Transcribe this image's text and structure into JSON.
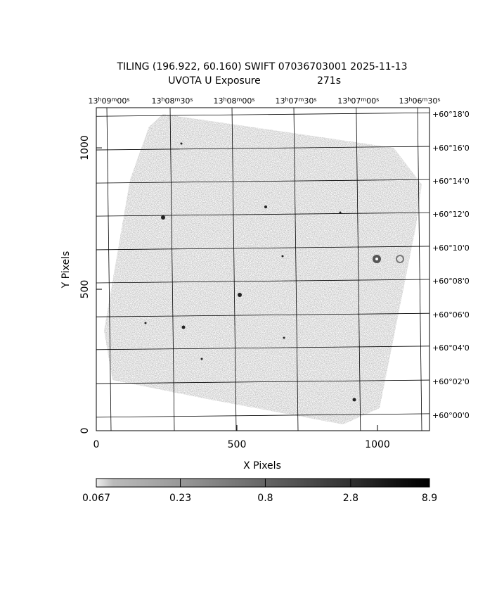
{
  "chart_data": {
    "type": "image",
    "title": "TILING (196.922, 60.160) SWIFT 07036703001 2025-11-13",
    "subtitle": "UVOTA U Exposure",
    "exposure": "271s",
    "xlabel": "X Pixels",
    "ylabel": "Y Pixels",
    "xlim": [
      0,
      1185
    ],
    "ylim": [
      0,
      1142
    ],
    "xticks": [
      0,
      500,
      1000
    ],
    "yticks": [
      0,
      500,
      1000
    ],
    "ra_ticks": [
      {
        "value": 45,
        "label": [
          "13",
          "h",
          "09",
          "m",
          "00",
          "s"
        ]
      },
      {
        "value": 270,
        "label": [
          "13",
          "h",
          "08",
          "m",
          "30",
          "s"
        ]
      },
      {
        "value": 490,
        "label": [
          "13",
          "h",
          "08",
          "m",
          "00",
          "s"
        ]
      },
      {
        "value": 710,
        "label": [
          "13",
          "h",
          "07",
          "m",
          "30",
          "s"
        ]
      },
      {
        "value": 932,
        "label": [
          "13",
          "h",
          "07",
          "m",
          "00",
          "s"
        ]
      },
      {
        "value": 1150,
        "label": [
          "13",
          "h",
          "06",
          "m",
          "30",
          "s"
        ]
      }
    ],
    "dec_ticks": [
      {
        "value": 1119,
        "label": "+60°18'0"
      },
      {
        "value": 1000,
        "label": "+60°16'0"
      },
      {
        "value": 883,
        "label": "+60°14'0"
      },
      {
        "value": 766,
        "label": "+60°12'0"
      },
      {
        "value": 647,
        "label": "+60°10'0"
      },
      {
        "value": 530,
        "label": "+60°08'0"
      },
      {
        "value": 410,
        "label": "+60°06'0"
      },
      {
        "value": 294,
        "label": "+60°04'0"
      },
      {
        "value": 174,
        "label": "+60°02'0"
      },
      {
        "value": 55,
        "label": "+60°00'0"
      }
    ],
    "grid": true,
    "colorbar": {
      "scale": "log",
      "lim": [
        0.067,
        8.9
      ],
      "ticks": [
        0.067,
        0.23,
        0.8,
        2.8,
        8.9
      ]
    }
  }
}
